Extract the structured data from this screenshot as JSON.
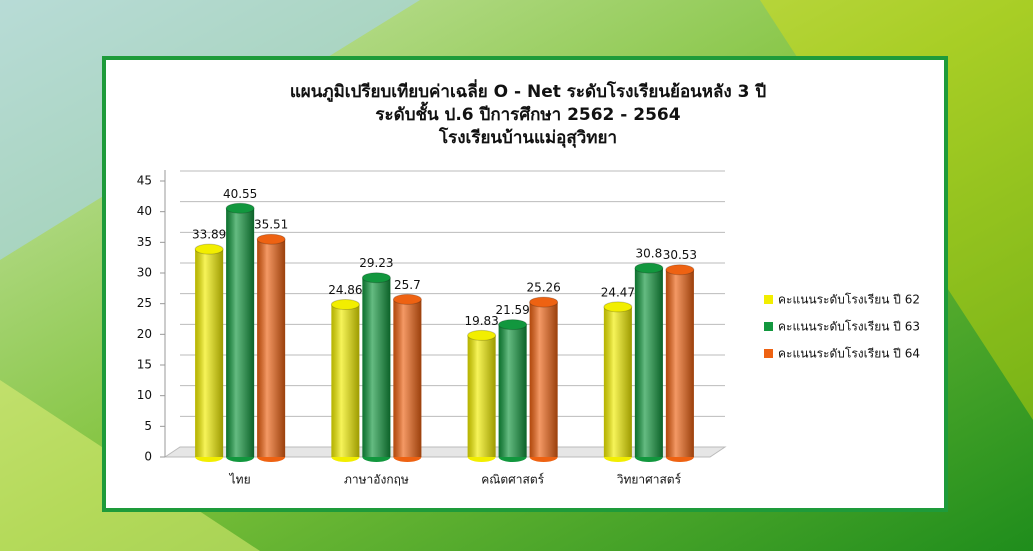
{
  "chart_data": {
    "type": "bar",
    "title": [
      "แผนภูมิเปรียบเทียบค่าเฉลี่ย O - Net ระดับโรงเรียนย้อนหลัง 3 ปี",
      "ระดับชั้น ป.6  ปีการศึกษา 2562 - 2564",
      "โรงเรียนบ้านแม่อุสุวิทยา"
    ],
    "categories": [
      "ไทย",
      "ภาษาอังกฤษ",
      "คณิตศาสตร์",
      "วิทยาศาสตร์"
    ],
    "series": [
      {
        "name": "คะแนนระดับโรงเรียน ปี 62",
        "color": "#f2ee00",
        "values": [
          33.89,
          24.86,
          19.83,
          24.47
        ]
      },
      {
        "name": "คะแนนระดับโรงเรียน ปี 63",
        "color": "#12973e",
        "values": [
          40.55,
          29.23,
          21.59,
          30.8
        ]
      },
      {
        "name": "คะแนนระดับโรงเรียน ปี 64",
        "color": "#ee6212",
        "values": [
          35.51,
          25.7,
          25.26,
          30.53
        ]
      }
    ],
    "ylim": [
      0,
      45
    ],
    "yticks": [
      0,
      5,
      10,
      15,
      20,
      25,
      30,
      35,
      40,
      45
    ],
    "grid": true,
    "legend": "right"
  }
}
